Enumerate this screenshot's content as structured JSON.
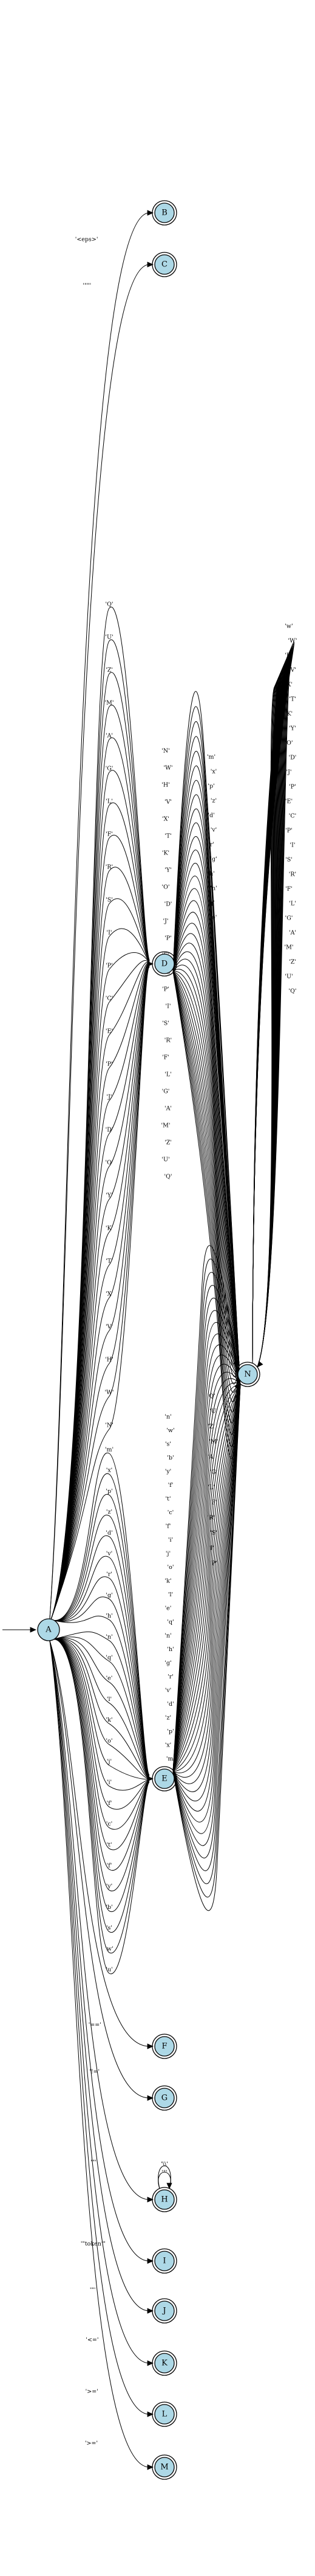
{
  "nodes": {
    "A": {
      "label": "A",
      "accepting": false
    },
    "B": {
      "label": "B",
      "accepting": true
    },
    "C": {
      "label": "C",
      "accepting": true
    },
    "D": {
      "label": "D",
      "accepting": true
    },
    "E": {
      "label": "E",
      "accepting": true
    },
    "N": {
      "label": "N",
      "accepting": true
    },
    "F": {
      "label": "F",
      "accepting": true
    },
    "G": {
      "label": "G",
      "accepting": true
    },
    "H": {
      "label": "H",
      "accepting": true
    },
    "I": {
      "label": "I",
      "accepting": true
    },
    "J": {
      "label": "J",
      "accepting": true
    },
    "K": {
      "label": "K",
      "accepting": true
    },
    "L": {
      "label": "L",
      "accepting": true
    },
    "M": {
      "label": "M",
      "accepting": true
    }
  },
  "start_node": "A",
  "edges_single": [
    {
      "from": "A",
      "to": "B",
      "label": "'<eps>'"
    },
    {
      "from": "A",
      "to": "C",
      "label": "'\"\"'"
    },
    {
      "from": "A",
      "to": "F",
      "label": "'=='"
    },
    {
      "from": "A",
      "to": "G",
      "label": "'!='"
    },
    {
      "from": "A",
      "to": "H",
      "label": "'\"'"
    },
    {
      "from": "A",
      "to": "I",
      "label": "'\"token'\""
    },
    {
      "from": "A",
      "to": "J",
      "label": "'\"'"
    },
    {
      "from": "A",
      "to": "K",
      "label": "'<='"
    },
    {
      "from": "A",
      "to": "L",
      "label": "'>='"
    },
    {
      "from": "A",
      "to": "M",
      "label": "'>='"
    }
  ],
  "edges_A_to_D": [
    "'Q'",
    "'U'",
    "'Z'",
    "'M'",
    "'A'",
    "'G'",
    "'L'",
    "'F'",
    "'R'",
    "'S'",
    "'I'",
    "'P'",
    "'C'",
    "'E'",
    "'P'",
    "'J'",
    "'D'",
    "'O'",
    "'Y'",
    "'K'",
    "'T'",
    "'X'",
    "'V'",
    "'H'",
    "'W'",
    "'N'"
  ],
  "edges_A_to_E": [
    "'m'",
    "'x'",
    "'p'",
    "'z'",
    "'d'",
    "'v'",
    "'r'",
    "'g'",
    "'h'",
    "'n'",
    "'q'",
    "'e'",
    "'l'",
    "'k'",
    "'o'",
    "'j'",
    "'i'",
    "'f'",
    "'c'",
    "'t'",
    "'f'",
    "'y'",
    "'b'",
    "'s'",
    "'w'",
    "'u'"
  ],
  "edges_D_to_N": [
    "'N'",
    "'W'",
    "'H'",
    "'V'",
    "'X'",
    "'T'",
    "'K'",
    "'Y'",
    "'O'",
    "'D'",
    "'J'",
    "'P'",
    "'E'",
    "'C'",
    "'P'",
    "'I'",
    "'S'",
    "'R'",
    "'F'",
    "'L'",
    "'G'",
    "'A'",
    "'M'",
    "'Z'",
    "'U'",
    "'Q'",
    "'m'",
    "'x'",
    "'p'",
    "'z'",
    "'d'",
    "'v'",
    "'r'",
    "'g'",
    "'h'",
    "'n'",
    "'q'",
    "'e'"
  ],
  "edges_E_to_N": [
    "'n'",
    "'w'",
    "'s'",
    "'b'",
    "'y'",
    "'f'",
    "'t'",
    "'c'",
    "'f'",
    "'i'",
    "'j'",
    "'o'",
    "'k'",
    "'l'",
    "'e'",
    "'q'",
    "'n'",
    "'h'",
    "'g'",
    "'r'",
    "'v'",
    "'d'",
    "'z'",
    "'p'",
    "'x'",
    "'m'",
    "'Q'",
    "'U'",
    "'Z'",
    "'M'",
    "'A'",
    "'G'",
    "'L'",
    "'F'",
    "'R'",
    "'S'",
    "'I'",
    "'P'"
  ],
  "edges_N_self": [
    "'w'",
    "'W'",
    "'H'",
    "'V'",
    "'X'",
    "'T'",
    "'K'",
    "'Y'",
    "'O'",
    "'D'",
    "'J'",
    "'P'",
    "'E'",
    "'C'",
    "'P'",
    "'I'",
    "'S'",
    "'R'",
    "'F'",
    "'L'",
    "'G'",
    "'A'",
    "'M'",
    "'Z'",
    "'U'",
    "'Q'"
  ],
  "edges_H_self": [
    "'\"'",
    "'\\\\'"
  ]
}
